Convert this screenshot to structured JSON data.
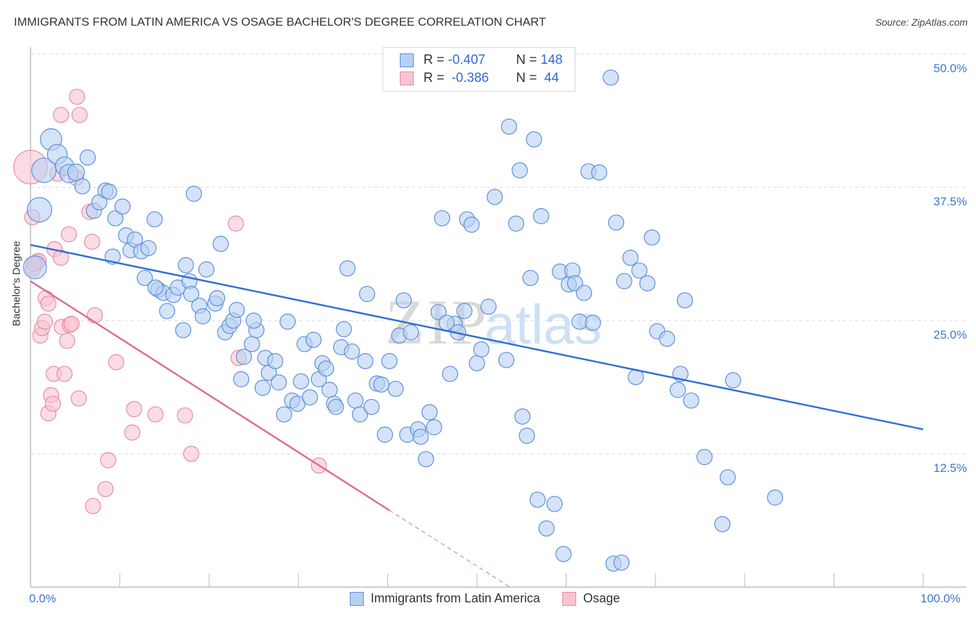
{
  "title": "IMMIGRANTS FROM LATIN AMERICA VS OSAGE BACHELOR'S DEGREE CORRELATION CHART",
  "source": "Source: ZipAtlas.com",
  "watermark": {
    "zip": "ZIP",
    "atlas": "atlas"
  },
  "legend_stats": [
    {
      "r_label": "R = ",
      "r_value": "-0.407",
      "n_label": "N = ",
      "n_value": "148"
    },
    {
      "r_label": "R = ",
      "r_value": "-0.386",
      "n_label": "N = ",
      "n_value": " 44"
    }
  ],
  "chart_data": {
    "type": "scatter",
    "title": "IMMIGRANTS FROM LATIN AMERICA VS OSAGE BACHELOR'S DEGREE CORRELATION CHART",
    "xlabel": "",
    "ylabel": "Bachelor's Degree",
    "xlim": [
      0,
      100
    ],
    "ylim": [
      0,
      50
    ],
    "x_tick_labels": [
      "0.0%",
      "100.0%"
    ],
    "y_ticks": [
      12.5,
      25.0,
      37.5,
      50.0
    ],
    "y_tick_labels": [
      "12.5%",
      "25.0%",
      "37.5%",
      "50.0%"
    ],
    "grid": true,
    "legend_position": "bottom",
    "colors": {
      "blue_fill": "#b7d1f3",
      "blue_stroke": "#5b8fd9",
      "blue_line": "#2f6fd4",
      "pink_fill": "#f8c4d2",
      "pink_stroke": "#e88aa6",
      "pink_line": "#e06a92"
    },
    "series": [
      {
        "name": "Immigrants from Latin America",
        "r": -0.407,
        "n": 148,
        "trend": {
          "x": [
            0,
            100
          ],
          "y": [
            32.1,
            14.8
          ]
        },
        "points": [
          [
            0.5,
            30.0,
            1.5
          ],
          [
            1.0,
            35.4,
            1.6
          ],
          [
            1.5,
            39.1,
            1.6
          ],
          [
            2.3,
            42.0,
            1.4
          ],
          [
            3.0,
            40.6,
            1.3
          ],
          [
            3.8,
            39.5,
            1.2
          ],
          [
            4.3,
            38.8,
            1.2
          ],
          [
            5.1,
            38.9,
            1.1
          ],
          [
            5.8,
            37.6,
            1.0
          ],
          [
            6.4,
            40.3,
            1.0
          ],
          [
            7.1,
            35.3,
            1.0
          ],
          [
            7.7,
            36.1,
            1.0
          ],
          [
            8.4,
            37.2,
            1.0
          ],
          [
            8.8,
            37.1,
            1.0
          ],
          [
            9.5,
            34.6,
            1.0
          ],
          [
            10.3,
            35.7,
            1.0
          ],
          [
            10.7,
            33.0,
            1.0
          ],
          [
            11.2,
            31.6,
            1.0
          ],
          [
            11.7,
            32.6,
            1.0
          ],
          [
            12.4,
            31.5,
            1.0
          ],
          [
            13.2,
            31.8,
            1.0
          ],
          [
            9.2,
            31.0,
            1.0
          ],
          [
            12.8,
            29.0,
            1.0
          ],
          [
            13.9,
            34.5,
            1.0
          ],
          [
            14.3,
            27.9,
            1.0
          ],
          [
            14.9,
            27.6,
            1.0
          ],
          [
            15.3,
            25.9,
            1.0
          ],
          [
            16.0,
            27.4,
            1.0
          ],
          [
            16.5,
            28.1,
            1.0
          ],
          [
            17.1,
            24.1,
            1.0
          ],
          [
            17.4,
            30.2,
            1.0
          ],
          [
            17.8,
            28.7,
            1.0
          ],
          [
            18.3,
            36.9,
            1.0
          ],
          [
            18.9,
            26.4,
            1.0
          ],
          [
            19.3,
            25.4,
            1.0
          ],
          [
            19.7,
            29.8,
            1.0
          ],
          [
            20.7,
            26.6,
            1.0
          ],
          [
            20.9,
            27.1,
            1.0
          ],
          [
            21.3,
            32.2,
            1.0
          ],
          [
            21.8,
            23.9,
            1.0
          ],
          [
            22.3,
            24.5,
            1.0
          ],
          [
            22.7,
            25.0,
            1.0
          ],
          [
            23.1,
            26.0,
            1.0
          ],
          [
            23.6,
            19.5,
            1.0
          ],
          [
            23.9,
            21.6,
            1.0
          ],
          [
            24.8,
            22.8,
            1.0
          ],
          [
            25.3,
            24.1,
            1.0
          ],
          [
            26.0,
            18.7,
            1.0
          ],
          [
            26.3,
            21.5,
            1.0
          ],
          [
            26.7,
            20.1,
            1.0
          ],
          [
            27.4,
            21.2,
            1.0
          ],
          [
            27.8,
            19.2,
            1.0
          ],
          [
            28.4,
            16.2,
            1.0
          ],
          [
            28.8,
            24.9,
            1.0
          ],
          [
            29.3,
            17.5,
            1.0
          ],
          [
            29.9,
            17.2,
            1.0
          ],
          [
            30.3,
            19.3,
            1.0
          ],
          [
            30.7,
            22.8,
            1.0
          ],
          [
            31.3,
            17.8,
            1.0
          ],
          [
            31.7,
            23.2,
            1.0
          ],
          [
            32.3,
            19.5,
            1.0
          ],
          [
            32.7,
            21.0,
            1.0
          ],
          [
            33.1,
            20.5,
            1.0
          ],
          [
            33.5,
            18.5,
            1.0
          ],
          [
            34.0,
            17.2,
            1.0
          ],
          [
            34.2,
            16.9,
            1.0
          ],
          [
            34.8,
            22.5,
            1.0
          ],
          [
            35.1,
            24.2,
            1.0
          ],
          [
            35.5,
            29.9,
            1.0
          ],
          [
            36.0,
            22.1,
            1.0
          ],
          [
            36.4,
            17.5,
            1.0
          ],
          [
            36.9,
            16.2,
            1.0
          ],
          [
            37.5,
            21.2,
            1.0
          ],
          [
            37.7,
            27.5,
            1.0
          ],
          [
            38.2,
            16.9,
            1.0
          ],
          [
            38.8,
            19.1,
            1.0
          ],
          [
            39.3,
            19.0,
            1.0
          ],
          [
            39.7,
            14.3,
            1.0
          ],
          [
            40.2,
            21.2,
            1.0
          ],
          [
            40.9,
            18.6,
            1.0
          ],
          [
            41.3,
            23.6,
            1.0
          ],
          [
            41.8,
            26.9,
            1.0
          ],
          [
            42.2,
            14.3,
            1.0
          ],
          [
            42.6,
            23.9,
            1.0
          ],
          [
            43.4,
            14.8,
            1.0
          ],
          [
            43.7,
            14.1,
            1.0
          ],
          [
            44.3,
            12.0,
            1.0
          ],
          [
            44.7,
            16.4,
            1.0
          ],
          [
            45.2,
            15.0,
            1.0
          ],
          [
            45.7,
            25.8,
            1.0
          ],
          [
            46.1,
            34.6,
            1.0
          ],
          [
            47.0,
            20.0,
            1.0
          ],
          [
            47.5,
            24.7,
            1.0
          ],
          [
            47.9,
            23.9,
            1.0
          ],
          [
            48.9,
            34.5,
            1.0
          ],
          [
            49.4,
            34.0,
            1.0
          ],
          [
            50.0,
            21.0,
            1.0
          ],
          [
            50.5,
            22.3,
            1.0
          ],
          [
            51.3,
            26.3,
            1.0
          ],
          [
            52.0,
            36.6,
            1.0
          ],
          [
            53.3,
            21.3,
            1.0
          ],
          [
            53.6,
            43.2,
            1.0
          ],
          [
            54.4,
            34.1,
            1.0
          ],
          [
            54.8,
            39.1,
            1.0
          ],
          [
            55.1,
            16.0,
            1.0
          ],
          [
            55.6,
            14.2,
            1.0
          ],
          [
            56.0,
            29.0,
            1.0
          ],
          [
            56.4,
            42.0,
            1.0
          ],
          [
            56.8,
            8.2,
            1.0
          ],
          [
            57.2,
            34.8,
            1.0
          ],
          [
            57.8,
            5.5,
            1.0
          ],
          [
            58.7,
            7.8,
            1.0
          ],
          [
            59.3,
            29.6,
            1.0
          ],
          [
            59.7,
            3.1,
            1.0
          ],
          [
            60.3,
            28.4,
            1.0
          ],
          [
            60.7,
            29.7,
            1.0
          ],
          [
            61.0,
            28.5,
            1.0
          ],
          [
            61.5,
            24.9,
            1.0
          ],
          [
            62.0,
            27.6,
            1.0
          ],
          [
            62.5,
            39.0,
            1.0
          ],
          [
            63.0,
            24.8,
            1.0
          ],
          [
            63.7,
            38.9,
            1.0
          ],
          [
            65.0,
            47.8,
            1.0
          ],
          [
            65.3,
            2.2,
            1.0
          ],
          [
            65.6,
            34.2,
            1.0
          ],
          [
            66.2,
            2.3,
            1.0
          ],
          [
            66.5,
            28.7,
            1.0
          ],
          [
            67.2,
            30.9,
            1.0
          ],
          [
            67.8,
            19.7,
            1.0
          ],
          [
            68.2,
            29.7,
            1.0
          ],
          [
            69.1,
            28.5,
            1.0
          ],
          [
            69.6,
            32.8,
            1.0
          ],
          [
            70.2,
            24.0,
            1.0
          ],
          [
            71.3,
            23.3,
            1.0
          ],
          [
            72.5,
            18.5,
            1.0
          ],
          [
            72.8,
            20.0,
            1.0
          ],
          [
            73.3,
            26.9,
            1.0
          ],
          [
            74.0,
            17.5,
            1.0
          ],
          [
            75.5,
            12.2,
            1.0
          ],
          [
            77.5,
            5.9,
            1.0
          ],
          [
            78.1,
            10.3,
            1.0
          ],
          [
            78.7,
            19.4,
            1.0
          ],
          [
            83.4,
            8.4,
            1.0
          ],
          [
            48.6,
            25.9,
            1.0
          ],
          [
            25.0,
            25.0,
            1.0
          ],
          [
            18.0,
            27.5,
            1.0
          ],
          [
            14.0,
            28.1,
            1.0
          ],
          [
            46.6,
            24.8,
            1.0
          ]
        ]
      },
      {
        "name": "Osage",
        "r": -0.386,
        "n": 44,
        "trend": {
          "x": [
            0,
            40.2
          ],
          "y": [
            28.7,
            7.2
          ],
          "dashed_to": [
            53.7,
            0
          ]
        },
        "points": [
          [
            0.0,
            39.4,
            2.2
          ],
          [
            0.2,
            34.7,
            1.0
          ],
          [
            0.3,
            29.9,
            1.0
          ],
          [
            0.7,
            30.5,
            1.0
          ],
          [
            0.9,
            30.6,
            1.0
          ],
          [
            1.1,
            23.6,
            1.0
          ],
          [
            1.3,
            24.3,
            1.0
          ],
          [
            1.6,
            24.9,
            1.0
          ],
          [
            1.7,
            27.1,
            1.0
          ],
          [
            2.0,
            26.6,
            1.0
          ],
          [
            2.0,
            16.3,
            1.0
          ],
          [
            2.3,
            18.0,
            1.0
          ],
          [
            2.5,
            17.2,
            1.0
          ],
          [
            2.6,
            20.0,
            1.0
          ],
          [
            2.7,
            31.7,
            1.0
          ],
          [
            3.0,
            38.8,
            1.0
          ],
          [
            3.4,
            30.9,
            1.0
          ],
          [
            3.5,
            24.4,
            1.0
          ],
          [
            3.4,
            44.3,
            1.0
          ],
          [
            3.8,
            20.0,
            1.0
          ],
          [
            4.1,
            23.1,
            1.0
          ],
          [
            4.3,
            33.1,
            1.0
          ],
          [
            4.4,
            24.6,
            1.0
          ],
          [
            4.6,
            24.7,
            1.0
          ],
          [
            5.1,
            38.4,
            1.0
          ],
          [
            5.2,
            46.0,
            1.0
          ],
          [
            5.5,
            44.3,
            1.0
          ],
          [
            5.4,
            17.7,
            1.0
          ],
          [
            6.6,
            35.2,
            1.0
          ],
          [
            6.9,
            32.4,
            1.0
          ],
          [
            7.2,
            25.5,
            1.0
          ],
          [
            7.0,
            7.6,
            1.0
          ],
          [
            8.4,
            9.2,
            1.0
          ],
          [
            8.7,
            11.9,
            1.0
          ],
          [
            9.6,
            21.1,
            1.0
          ],
          [
            11.4,
            14.5,
            1.0
          ],
          [
            11.6,
            16.7,
            1.0
          ],
          [
            14.0,
            16.2,
            1.0
          ],
          [
            17.3,
            16.1,
            1.0
          ],
          [
            18.0,
            12.5,
            1.0
          ],
          [
            23.3,
            21.5,
            1.0
          ],
          [
            23.0,
            34.1,
            1.0
          ],
          [
            32.3,
            11.4,
            1.0
          ],
          [
            0.4,
            30.3,
            1.0
          ]
        ]
      }
    ]
  },
  "bottom_legend": [
    {
      "label": "Immigrants from Latin America"
    },
    {
      "label": "Osage"
    }
  ]
}
